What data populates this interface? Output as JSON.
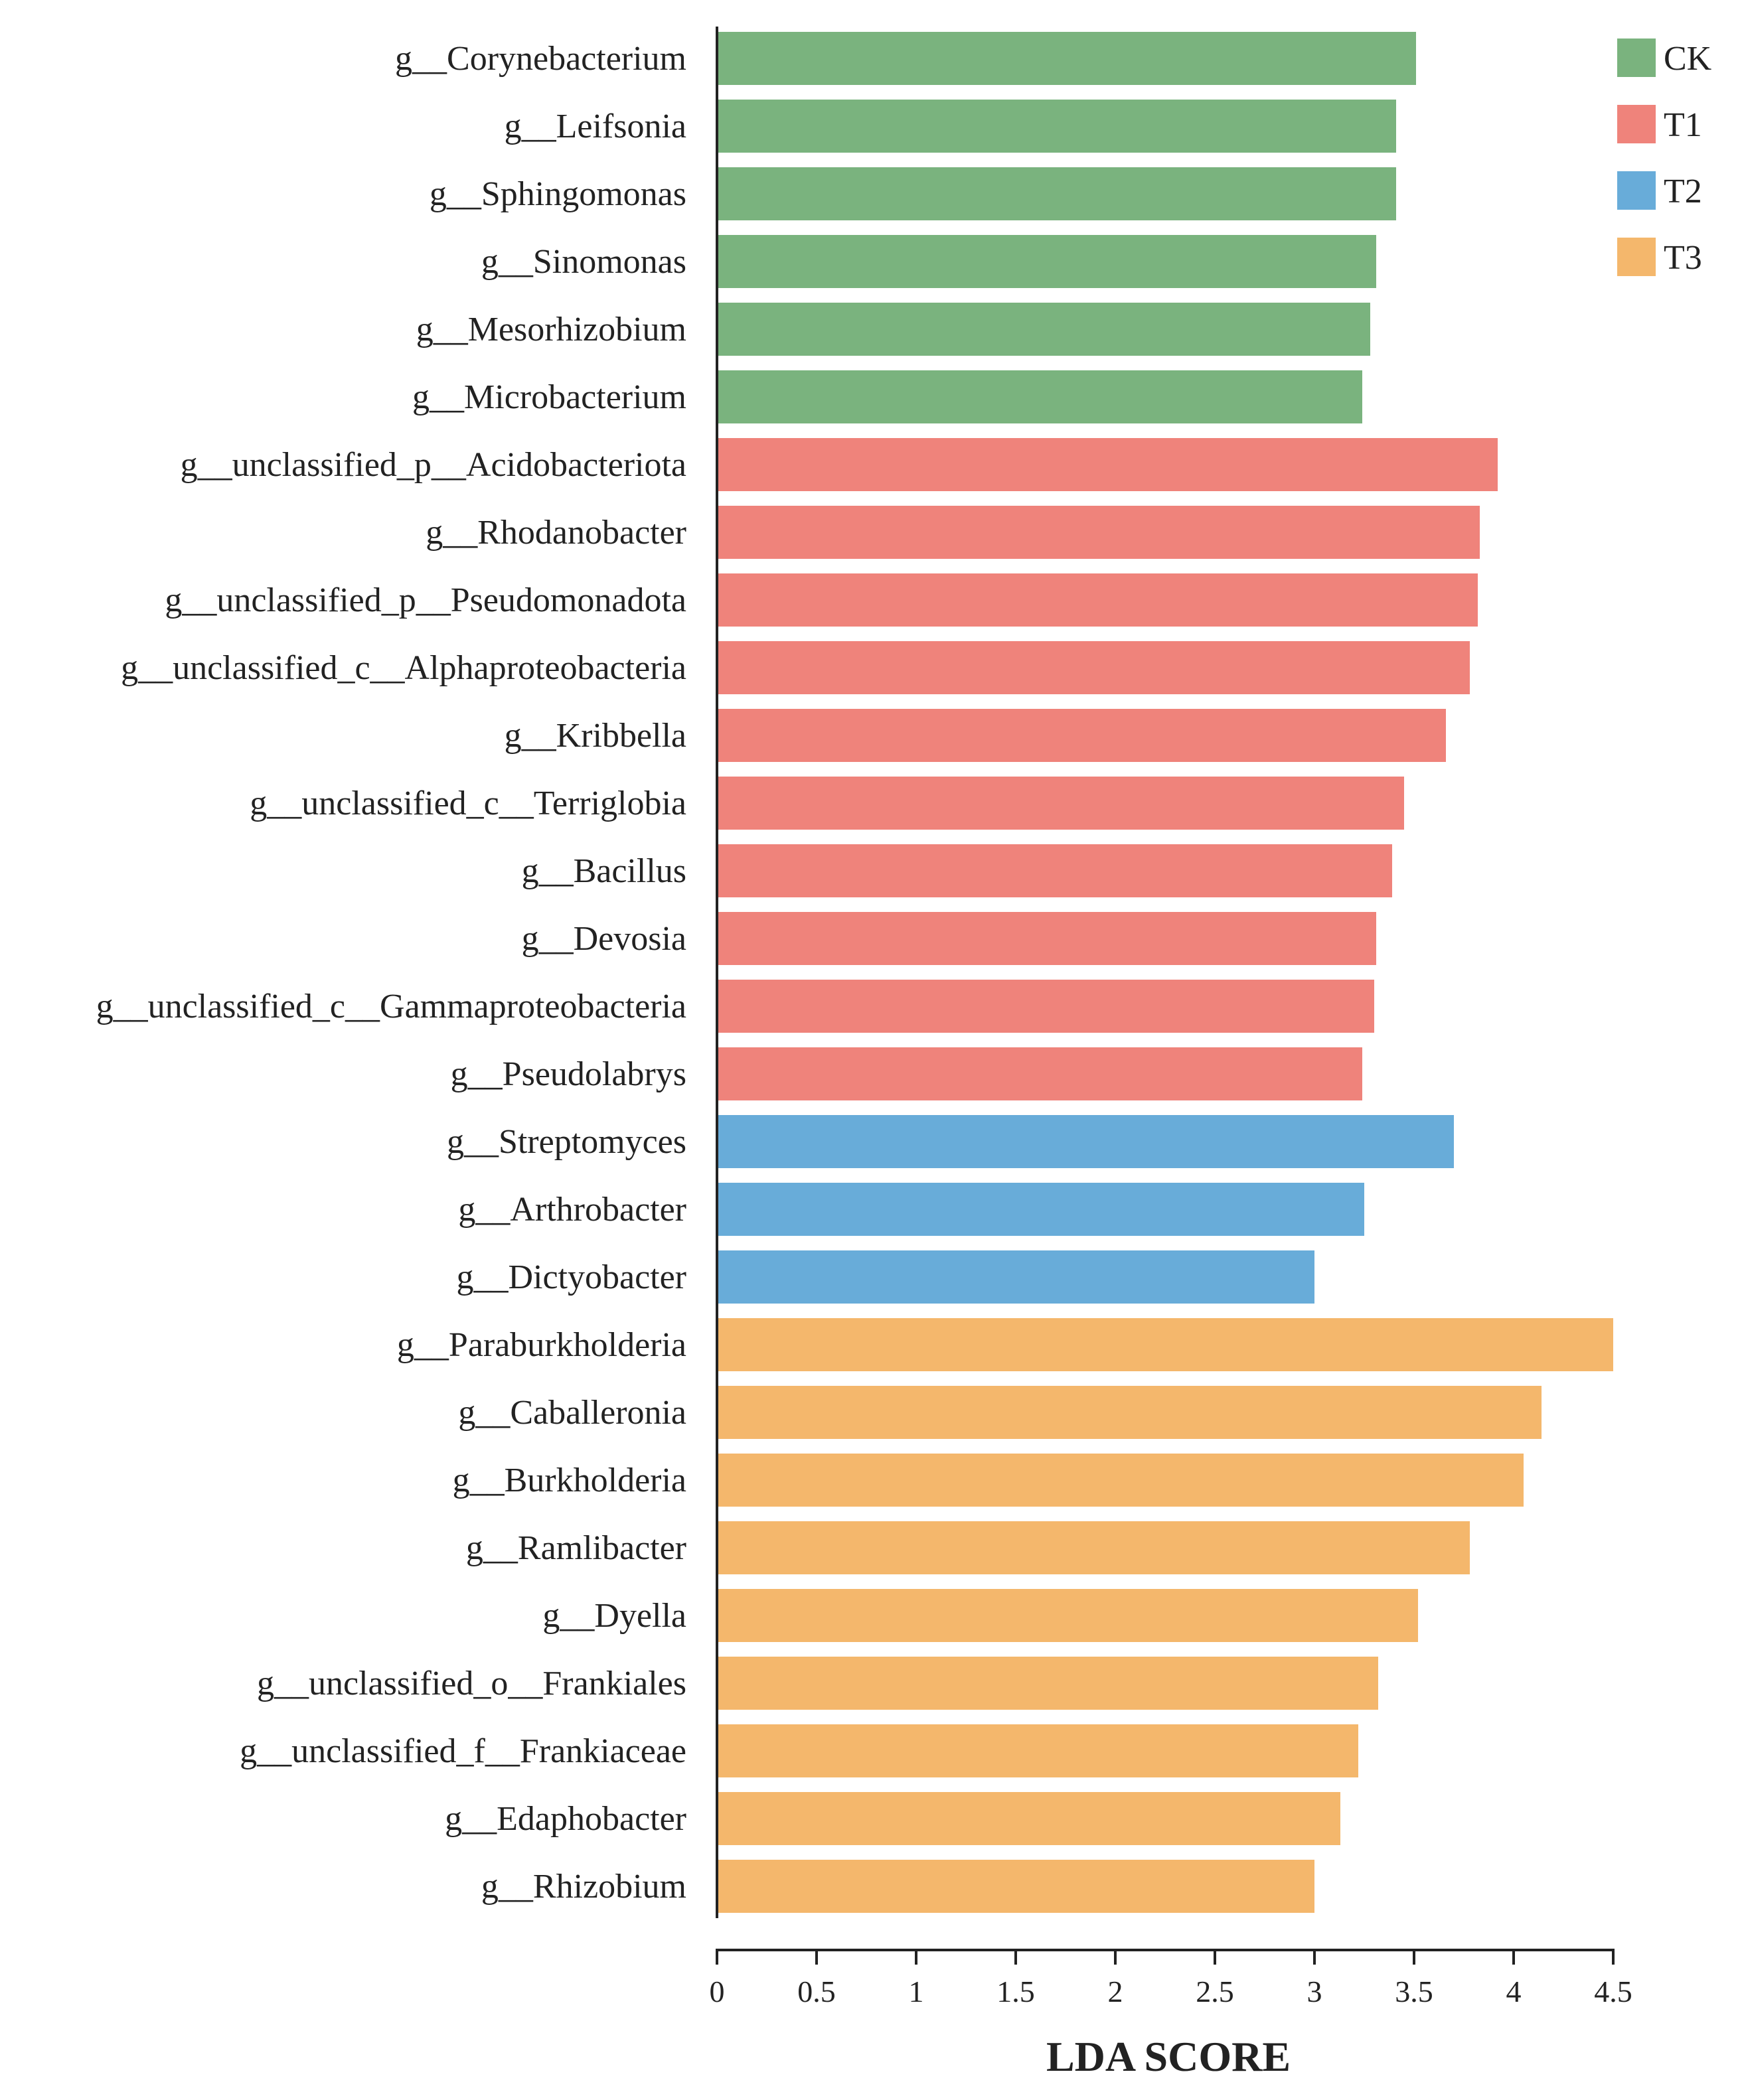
{
  "chart_data": {
    "type": "bar",
    "orientation": "horizontal",
    "title": "",
    "xlabel": "LDA SCORE",
    "ylabel": "",
    "xlim": [
      0,
      4.5
    ],
    "xticks": [
      0,
      0.5,
      1,
      1.5,
      2,
      2.5,
      3,
      3.5,
      4,
      4.5
    ],
    "xtick_labels": [
      "0",
      "0.5",
      "1",
      "1.5",
      "2",
      "2.5",
      "3",
      "3.5",
      "4",
      "4.5"
    ],
    "grid": false,
    "legend_position": "top-right",
    "groups": [
      {
        "name": "CK",
        "color": "#7ab37e"
      },
      {
        "name": "T1",
        "color": "#ef837b"
      },
      {
        "name": "T2",
        "color": "#68acd9"
      },
      {
        "name": "T3",
        "color": "#f4b76c"
      }
    ],
    "bars": [
      {
        "label": "g__Corynebacterium",
        "value": 3.51,
        "group": "CK"
      },
      {
        "label": "g__Leifsonia",
        "value": 3.41,
        "group": "CK"
      },
      {
        "label": "g__Sphingomonas",
        "value": 3.41,
        "group": "CK"
      },
      {
        "label": "g__Sinomonas",
        "value": 3.31,
        "group": "CK"
      },
      {
        "label": "g__Mesorhizobium",
        "value": 3.28,
        "group": "CK"
      },
      {
        "label": "g__Microbacterium",
        "value": 3.24,
        "group": "CK"
      },
      {
        "label": "g__unclassified_p__Acidobacteriota",
        "value": 3.92,
        "group": "T1"
      },
      {
        "label": "g__Rhodanobacter",
        "value": 3.83,
        "group": "T1"
      },
      {
        "label": "g__unclassified_p__Pseudomonadota",
        "value": 3.82,
        "group": "T1"
      },
      {
        "label": "g__unclassified_c__Alphaproteobacteria",
        "value": 3.78,
        "group": "T1"
      },
      {
        "label": "g__Kribbella",
        "value": 3.66,
        "group": "T1"
      },
      {
        "label": "g__unclassified_c__Terriglobia",
        "value": 3.45,
        "group": "T1"
      },
      {
        "label": "g__Bacillus",
        "value": 3.39,
        "group": "T1"
      },
      {
        "label": "g__Devosia",
        "value": 3.31,
        "group": "T1"
      },
      {
        "label": "g__unclassified_c__Gammaproteobacteria",
        "value": 3.3,
        "group": "T1"
      },
      {
        "label": "g__Pseudolabrys",
        "value": 3.24,
        "group": "T1"
      },
      {
        "label": "g__Streptomyces",
        "value": 3.7,
        "group": "T2"
      },
      {
        "label": "g__Arthrobacter",
        "value": 3.25,
        "group": "T2"
      },
      {
        "label": "g__Dictyobacter",
        "value": 3.0,
        "group": "T2"
      },
      {
        "label": "g__Paraburkholderia",
        "value": 4.5,
        "group": "T3"
      },
      {
        "label": "g__Caballeronia",
        "value": 4.14,
        "group": "T3"
      },
      {
        "label": "g__Burkholderia",
        "value": 4.05,
        "group": "T3"
      },
      {
        "label": "g__Ramlibacter",
        "value": 3.78,
        "group": "T3"
      },
      {
        "label": "g__Dyella",
        "value": 3.52,
        "group": "T3"
      },
      {
        "label": "g__unclassified_o__Frankiales",
        "value": 3.32,
        "group": "T3"
      },
      {
        "label": "g__unclassified_f__Frankiaceae",
        "value": 3.22,
        "group": "T3"
      },
      {
        "label": "g__Edaphobacter",
        "value": 3.13,
        "group": "T3"
      },
      {
        "label": "g__Rhizobium",
        "value": 3.0,
        "group": "T3"
      }
    ]
  }
}
